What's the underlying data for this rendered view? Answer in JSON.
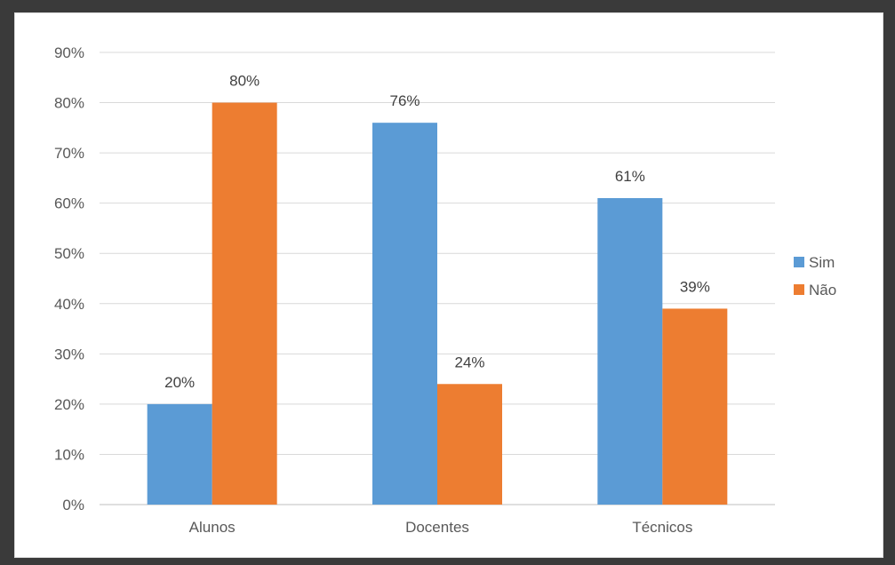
{
  "chart_data": {
    "type": "bar",
    "categories": [
      "Alunos",
      "Docentes",
      "Técnicos"
    ],
    "series": [
      {
        "name": "Sim",
        "values": [
          20,
          76,
          61
        ],
        "color": "#5B9BD5"
      },
      {
        "name": "Não",
        "values": [
          80,
          24,
          39
        ],
        "color": "#ED7D31"
      }
    ],
    "data_labels": [
      [
        "20%",
        "76%",
        "61%"
      ],
      [
        "80%",
        "24%",
        "39%"
      ]
    ],
    "ylim": [
      0,
      90
    ],
    "yticks": [
      0,
      10,
      20,
      30,
      40,
      50,
      60,
      70,
      80,
      90
    ],
    "ytick_labels": [
      "0%",
      "10%",
      "20%",
      "30%",
      "40%",
      "50%",
      "60%",
      "70%",
      "80%",
      "90%"
    ],
    "grid": true,
    "legend_position": "right",
    "title": "",
    "xlabel": "",
    "ylabel": ""
  }
}
